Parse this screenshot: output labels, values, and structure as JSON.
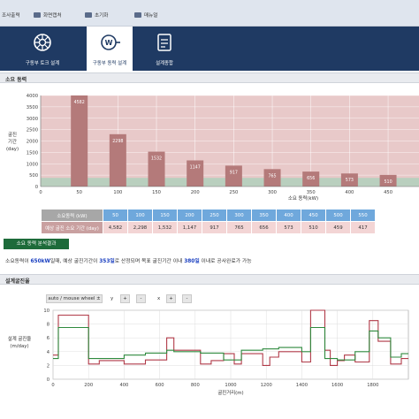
{
  "topbar": {
    "items": [
      {
        "label": "조사출력",
        "icon": "print-icon"
      },
      {
        "label": "화면캡처",
        "icon": "camera-icon"
      },
      {
        "label": "초기화",
        "icon": "refresh-icon"
      },
      {
        "label": "매뉴얼",
        "icon": "book-icon"
      }
    ]
  },
  "nav": {
    "tabs": [
      {
        "label": "구동부 토크 설계",
        "icon": "gear-torque-icon",
        "active": false
      },
      {
        "label": "구동부 동력 설계",
        "icon": "motor-power-icon",
        "active": true
      },
      {
        "label": "설계종합",
        "icon": "clipboard-icon",
        "active": false
      }
    ]
  },
  "power_section": {
    "title": "소요 동력"
  },
  "result_button": "소요 동력 분석결과",
  "result_text": {
    "part1": "소요동력이 ",
    "power": "650kW",
    "part2": "일때, 예상 굴진기간이 ",
    "days": "353일",
    "part3": "로 산정되며 목표 굴진기간 이내 ",
    "target": "380일",
    "part4": " 이내로 공사완료가 가능"
  },
  "table": {
    "row1_label": "소요동력 (kW)",
    "row2_label": "예상 굴진 소요 기간 (day)",
    "powers": [
      "50",
      "100",
      "150",
      "200",
      "250",
      "300",
      "350",
      "400",
      "450",
      "500",
      "550"
    ],
    "days": [
      "4,582",
      "2,298",
      "1,532",
      "1,147",
      "917",
      "765",
      "656",
      "573",
      "510",
      "459",
      "417"
    ]
  },
  "design_section": {
    "title": "설계굴진율"
  },
  "controls": {
    "mode_value": "auto / mouse wheel ±",
    "y_label": "y",
    "x_label": "x",
    "plus": "+",
    "minus": "-"
  },
  "colors": {
    "nav_bg": "#1f3a63",
    "bar_fill": "#b47a7a",
    "target_band": "#e8c9c9",
    "success_band": "#b9cfbe",
    "series_red": "#b03a48",
    "series_green": "#2f8a3e"
  },
  "chart_data": [
    {
      "type": "bar",
      "title": "",
      "xlabel": "소요 동력(kW)",
      "ylabel": "굴진 기간 (day)",
      "categories": [
        50,
        100,
        150,
        200,
        250,
        300,
        350,
        400,
        450
      ],
      "values": [
        4582,
        2298,
        1532,
        1147,
        917,
        765,
        656,
        573,
        510
      ],
      "data_labels": [
        "4582",
        "2298",
        "1532",
        "1147",
        "917",
        "765",
        "656",
        "573",
        "510"
      ],
      "xlim": [
        0,
        490
      ],
      "ylim": [
        0,
        4000
      ],
      "yticks": [
        0,
        500,
        1000,
        1500,
        2000,
        2500,
        3000,
        3500,
        4000
      ],
      "xticks": [
        0,
        50,
        100,
        150,
        200,
        250,
        300,
        350,
        400,
        450
      ],
      "target_days": 380,
      "grid": true
    },
    {
      "type": "line",
      "title": "",
      "xlabel": "굴진거리(m)",
      "ylabel": "설계 굴진율 (m/day)",
      "xlim": [
        0,
        2000
      ],
      "ylim": [
        0,
        10
      ],
      "yticks": [
        0,
        2,
        4,
        6,
        8,
        10
      ],
      "xticks": [
        0,
        200,
        400,
        600,
        800,
        1000,
        1200,
        1400,
        1600,
        1800
      ],
      "grid": true,
      "series": [
        {
          "color": "red",
          "x": [
            0,
            30,
            30,
            200,
            200,
            260,
            260,
            400,
            400,
            520,
            520,
            640,
            640,
            680,
            680,
            830,
            830,
            890,
            890,
            960,
            960,
            1020,
            1020,
            1060,
            1060,
            1180,
            1180,
            1220,
            1220,
            1270,
            1270,
            1400,
            1400,
            1450,
            1450,
            1530,
            1530,
            1560,
            1560,
            1600,
            1600,
            1640,
            1640,
            1700,
            1700,
            1780,
            1780,
            1830,
            1830,
            1900,
            1900,
            1960,
            1960,
            2000
          ],
          "y": [
            3.5,
            3.5,
            9.3,
            9.3,
            2.2,
            2.2,
            2.7,
            2.7,
            2.2,
            2.2,
            2.8,
            2.8,
            6.0,
            6.0,
            4.2,
            4.2,
            2.2,
            2.2,
            2.7,
            2.7,
            3.7,
            3.7,
            2.2,
            2.2,
            3.7,
            3.7,
            2.0,
            2.0,
            3.2,
            3.2,
            4.0,
            4.0,
            2.5,
            2.5,
            10.0,
            10.0,
            4.2,
            4.2,
            2.0,
            2.0,
            2.7,
            2.7,
            3.5,
            3.5,
            2.5,
            2.5,
            8.5,
            8.5,
            5.5,
            5.5,
            2.2,
            2.2,
            3.0,
            3.0
          ]
        },
        {
          "color": "green",
          "x": [
            0,
            30,
            30,
            200,
            200,
            400,
            400,
            520,
            520,
            640,
            640,
            680,
            680,
            830,
            830,
            960,
            960,
            1060,
            1060,
            1180,
            1180,
            1270,
            1270,
            1400,
            1400,
            1450,
            1450,
            1530,
            1530,
            1600,
            1600,
            1700,
            1700,
            1780,
            1780,
            1830,
            1830,
            1900,
            1900,
            1960,
            1960,
            2000
          ],
          "y": [
            3.0,
            3.0,
            7.5,
            7.5,
            3.0,
            3.0,
            3.5,
            3.5,
            3.8,
            3.8,
            4.2,
            4.2,
            4.0,
            4.0,
            3.8,
            3.8,
            2.8,
            2.8,
            4.2,
            4.2,
            4.4,
            4.4,
            4.6,
            4.6,
            4.0,
            4.0,
            7.5,
            7.5,
            3.0,
            3.0,
            2.8,
            2.8,
            4.0,
            4.0,
            7.0,
            7.0,
            6.0,
            6.0,
            3.2,
            3.2,
            3.7,
            3.7
          ]
        }
      ]
    }
  ]
}
